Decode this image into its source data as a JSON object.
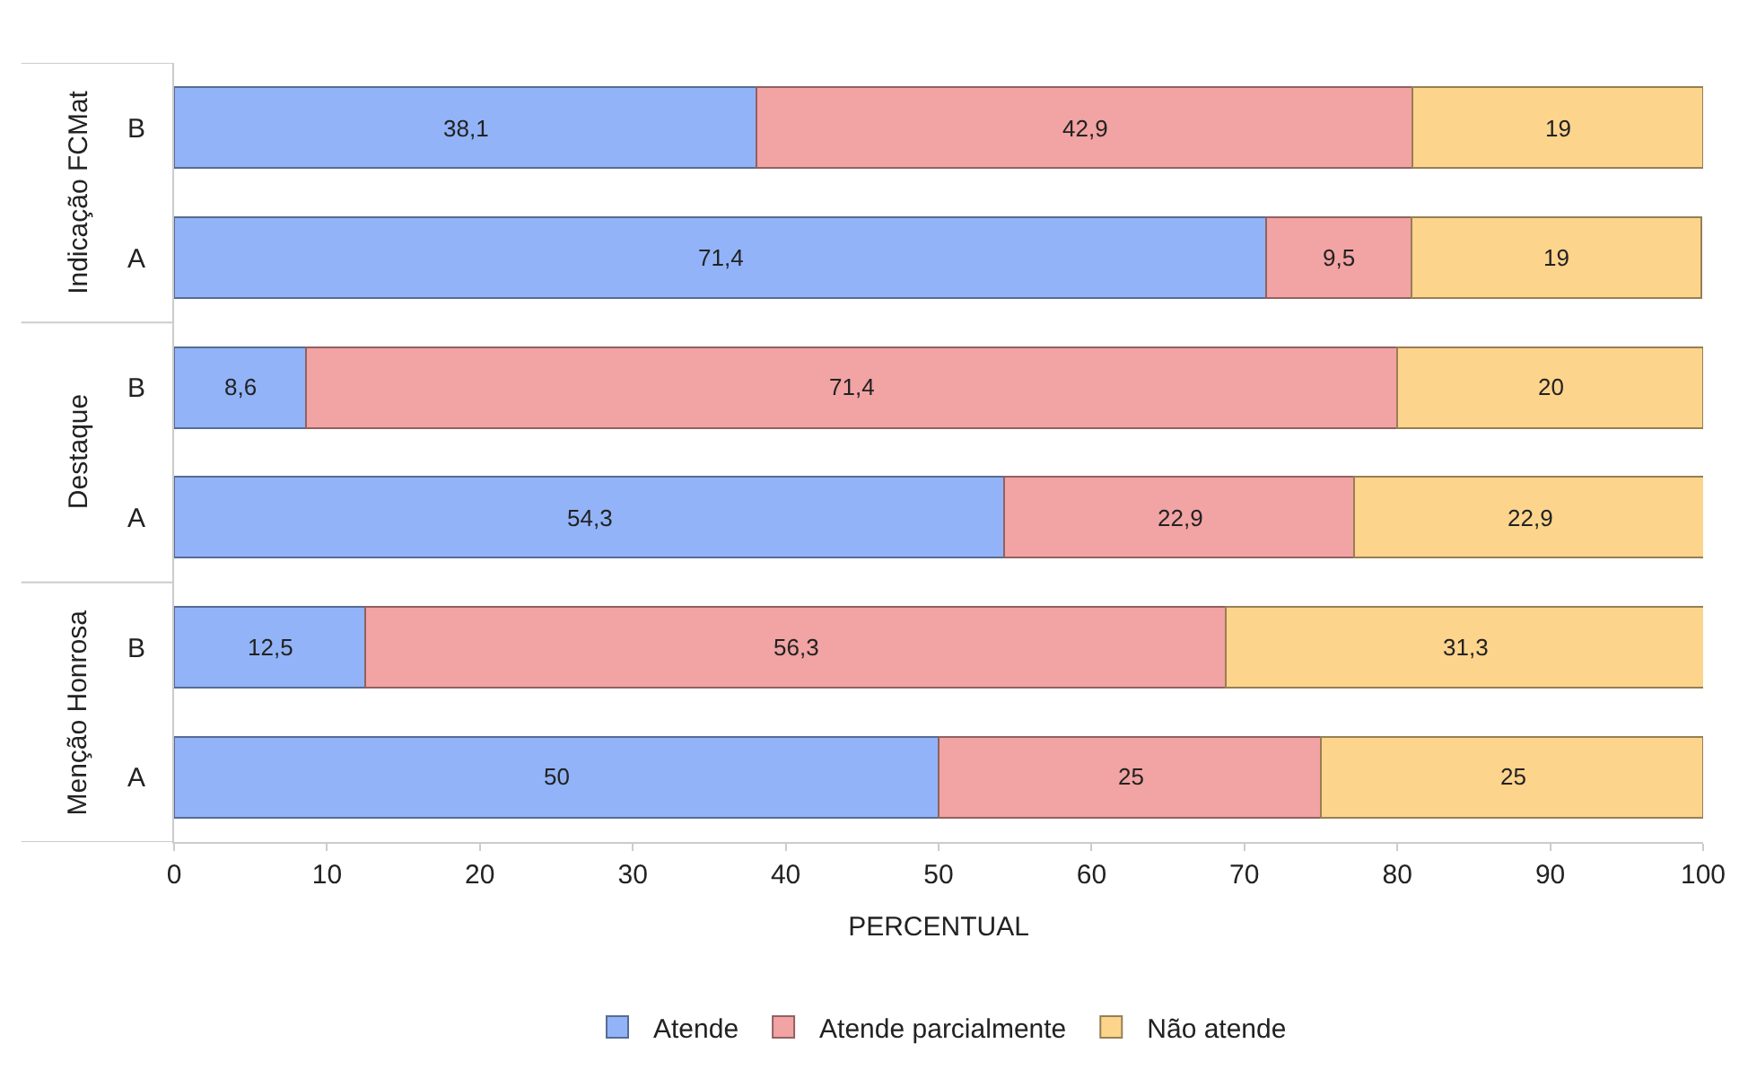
{
  "chart_data": {
    "type": "bar",
    "orientation": "horizontal",
    "stacked": true,
    "categories": [
      "B",
      "A",
      "B",
      "A",
      "B",
      "A"
    ],
    "annotations": [
      "Indicação FCMat",
      "Destaque",
      "Menção Honrosa"
    ],
    "series": [
      {
        "name": "Atende",
        "color": "#92b3f7",
        "values": [
          38.1,
          71.4,
          8.6,
          54.3,
          12.5,
          50
        ],
        "value_labels": [
          "38,1",
          "71,4",
          "8,6",
          "54,3",
          "12,5",
          "50"
        ]
      },
      {
        "name": "Atende parcialmente",
        "color": "#f2a3a3",
        "values": [
          42.9,
          9.5,
          71.4,
          22.9,
          56.3,
          25
        ],
        "value_labels": [
          "42,9",
          "9,5",
          "71,4",
          "22,9",
          "56,3",
          "25"
        ]
      },
      {
        "name": "Não atende",
        "color": "#fdd48c",
        "values": [
          19,
          19,
          20,
          22.9,
          31.3,
          25
        ],
        "value_labels": [
          "19",
          "19",
          "20",
          "22,9",
          "31,3",
          "25"
        ]
      }
    ],
    "xlabel": "PERCENTUAL",
    "xlim": [
      0,
      100
    ],
    "xticks": [
      0,
      10,
      20,
      30,
      40,
      50,
      60,
      70,
      80,
      90,
      100
    ],
    "legend": "bottom"
  }
}
